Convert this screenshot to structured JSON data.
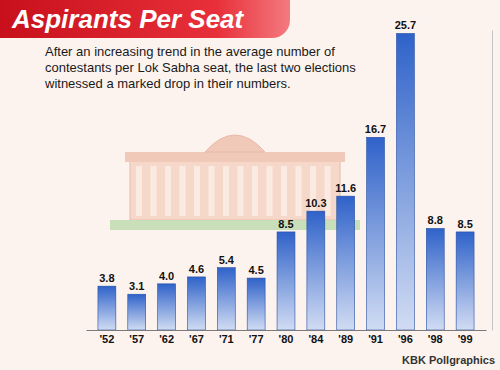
{
  "chart_data": {
    "type": "bar",
    "title": "Aspirants Per Seat",
    "subtitle": "After an increasing trend in the average number of contestants per Lok Sabha seat, the last two elections witnessed a marked drop in their numbers.",
    "categories": [
      "'52",
      "'57",
      "'62",
      "'67",
      "'71",
      "'77",
      "'80",
      "'84",
      "'89",
      "'91",
      "'96",
      "'98",
      "'99"
    ],
    "values": [
      3.8,
      3.1,
      4.0,
      4.6,
      5.4,
      4.5,
      8.5,
      10.3,
      11.6,
      16.7,
      25.7,
      8.8,
      8.5
    ],
    "value_labels": [
      "3.8",
      "3.1",
      "4.0",
      "4.6",
      "5.4",
      "4.5",
      "8.5",
      "10.3",
      "11.6",
      "16.7",
      "25.7",
      "8.8",
      "8.5"
    ],
    "color": "#2f62c9",
    "ylim": [
      0,
      26
    ],
    "grid": false,
    "data_labels": true,
    "tick_labels": "x",
    "annotations": [
      "KBK Pollgraphics"
    ]
  }
}
